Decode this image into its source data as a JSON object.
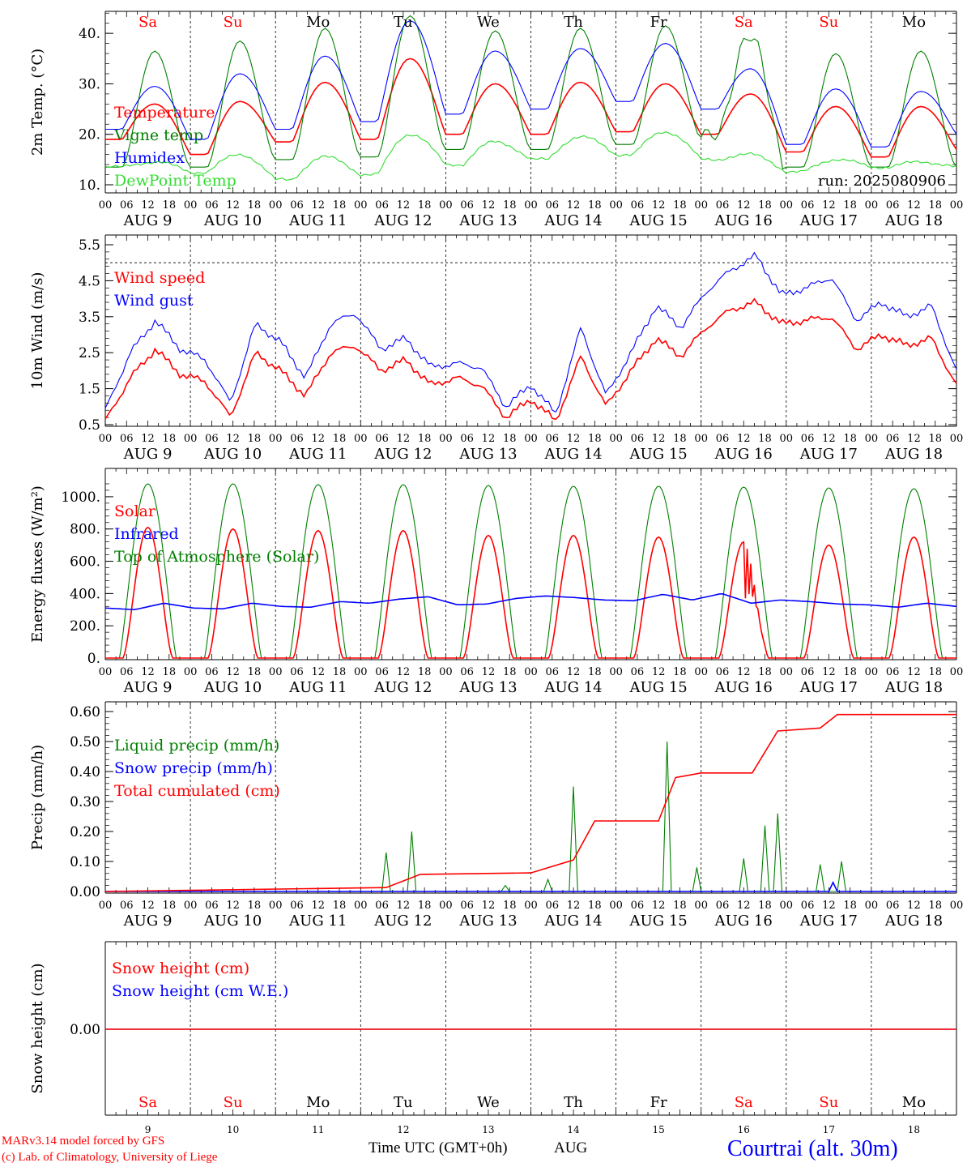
{
  "days": {
    "weekdays": [
      "Sa",
      "Su",
      "Mo",
      "Tu",
      "We",
      "Th",
      "Fr",
      "Sa",
      "Su",
      "Mo"
    ],
    "weekend_flags": [
      true,
      true,
      false,
      false,
      false,
      false,
      false,
      true,
      true,
      false
    ],
    "dates": [
      "AUG  9",
      "AUG 10",
      "AUG 11",
      "AUG 12",
      "AUG 13",
      "AUG 14",
      "AUG 15",
      "AUG 16",
      "AUG 17",
      "AUG 18"
    ],
    "day_numbers": [
      "9",
      "10",
      "11",
      "12",
      "13",
      "14",
      "15",
      "16",
      "17",
      "18"
    ],
    "hour_ticks": [
      "00",
      "06",
      "12",
      "18"
    ],
    "final_hour_label": "00"
  },
  "colors": {
    "red": "#ff0000",
    "green": "#008000",
    "blue": "#0000ff",
    "lightgreen": "#33dd33",
    "weekend": "#ff0000"
  },
  "run_label": "run: 2025080906",
  "xlabel": "Time UTC (GMT+0h)",
  "xlabel_month": "AUG",
  "footer": {
    "line1": "MARv3.14 model forced by GFS",
    "line2": "(c) Lab. of Climatology, University of Liege",
    "station": "Courtrai (alt. 30m)"
  },
  "chart_data": [
    {
      "type": "line",
      "id": "temp",
      "ylabel": "2m Temp. (°C)",
      "ylim": [
        10,
        45
      ],
      "yticks": [
        10,
        20,
        30,
        40
      ],
      "ytick_labels": [
        "10.",
        "20.",
        "30.",
        "40."
      ],
      "grid": "vertical dashed at midnight",
      "series": [
        {
          "name": "Temperature",
          "color": "red",
          "min_values": [
            19,
            16,
            18.5,
            19,
            20,
            20,
            20.5,
            20,
            16.5,
            15.5,
            17
          ],
          "max_values": [
            26,
            26.5,
            30.3,
            35,
            30,
            30.3,
            30,
            28,
            25.5,
            25.5
          ]
        },
        {
          "name": "Vigne temp",
          "color": "green",
          "min_values": [
            13.5,
            13.5,
            15,
            15.5,
            17,
            17,
            18,
            19,
            13.5,
            13.5,
            13.5
          ],
          "max_values": [
            36.5,
            38.5,
            41,
            43.5,
            40.5,
            41,
            41.5,
            39,
            36,
            36.5
          ]
        },
        {
          "name": "Humidex",
          "color": "blue",
          "min_values": [
            21,
            19,
            21,
            22.5,
            24,
            25,
            26.5,
            25,
            18,
            17.5,
            20
          ],
          "max_values": [
            29.5,
            32,
            35.5,
            42.5,
            36.5,
            37,
            38,
            33,
            29,
            28.5
          ]
        },
        {
          "name": "DewPoint Temp",
          "color": "lightgreen",
          "min_values": [
            13.5,
            12.5,
            11,
            12,
            14,
            15,
            16,
            15,
            12.5,
            13.5,
            13.5
          ],
          "max_values": [
            14.5,
            16,
            15.5,
            20,
            18.5,
            19.5,
            20.5,
            16,
            15,
            14.5
          ]
        }
      ]
    },
    {
      "type": "line",
      "id": "wind",
      "ylabel": "10m Wind (m/s)",
      "ylim": [
        0.5,
        5.5
      ],
      "yticks": [
        0.5,
        1.5,
        2.5,
        3.5,
        4.5,
        5.5
      ],
      "ytick_labels": [
        "0.5",
        "1.5",
        "2.5",
        "3.5",
        "4.5",
        "5.5"
      ],
      "threshold_line": 5.0,
      "series": [
        {
          "name": "Wind speed",
          "color": "red",
          "values": [
            0.6,
            1.8,
            2.6,
            1.9,
            1.7,
            0.7,
            2.5,
            2.0,
            1.3,
            2.5,
            2.7,
            2.0,
            2.3,
            1.6,
            1.8,
            1.6,
            0.7,
            1.2,
            0.6,
            2.4,
            1.0,
            2.0,
            2.9,
            2.4,
            3.2,
            3.7,
            3.9,
            3.3,
            3.4,
            3.5,
            2.6,
            3.0,
            2.7,
            2.9,
            1.6
          ]
        },
        {
          "name": "Wind gust",
          "color": "blue",
          "values": [
            0.9,
            2.5,
            3.4,
            2.6,
            2.3,
            1.1,
            3.3,
            2.8,
            1.8,
            3.3,
            3.6,
            2.6,
            2.9,
            2.1,
            2.2,
            2.1,
            1.0,
            1.6,
            0.8,
            3.2,
            1.3,
            2.5,
            3.8,
            3.2,
            4.2,
            4.8,
            5.2,
            4.1,
            4.3,
            4.6,
            3.4,
            3.9,
            3.5,
            3.8,
            2.0
          ]
        }
      ]
    },
    {
      "type": "line",
      "id": "energy",
      "ylabel": "Energy fluxes (W/m²)",
      "ylim": [
        0,
        1100
      ],
      "yticks": [
        0,
        200,
        400,
        600,
        800,
        1000
      ],
      "ytick_labels": [
        "0.",
        "200.",
        "400.",
        "600.",
        "800.",
        "1000."
      ],
      "series": [
        {
          "name": "Solar",
          "color": "red",
          "daily_peak": [
            810,
            800,
            790,
            790,
            760,
            760,
            750,
            720,
            700,
            750
          ]
        },
        {
          "name": "Infrared",
          "color": "blue",
          "values": [
            310,
            300,
            340,
            310,
            305,
            340,
            320,
            315,
            350,
            340,
            365,
            380,
            330,
            335,
            370,
            385,
            375,
            360,
            355,
            395,
            360,
            400,
            340,
            360,
            350,
            335,
            330,
            315,
            340,
            320
          ]
        },
        {
          "name": "Top of Atmosphere (Solar)",
          "color": "green",
          "daily_peak": [
            1080,
            1080,
            1075,
            1075,
            1070,
            1065,
            1065,
            1060,
            1055,
            1050
          ]
        }
      ]
    },
    {
      "type": "line",
      "id": "precip",
      "ylabel": "Precip (mm/h)",
      "ylim": [
        0,
        0.6
      ],
      "yticks": [
        0,
        0.1,
        0.2,
        0.3,
        0.4,
        0.5,
        0.6
      ],
      "ytick_labels": [
        "0.00",
        "0.10",
        "0.20",
        "0.30",
        "0.40",
        "0.50",
        "0.60"
      ],
      "series": [
        {
          "name": "Liquid precip (mm/h)",
          "color": "green",
          "spikes": [
            [
              3.3,
              0.13
            ],
            [
              3.6,
              0.2
            ],
            [
              4.7,
              0.02
            ],
            [
              5.2,
              0.04
            ],
            [
              5.5,
              0.35
            ],
            [
              6.6,
              0.5
            ],
            [
              6.95,
              0.08
            ],
            [
              7.5,
              0.11
            ],
            [
              7.75,
              0.22
            ],
            [
              7.9,
              0.26
            ],
            [
              8.4,
              0.09
            ],
            [
              8.65,
              0.1
            ]
          ]
        },
        {
          "name": "Snow precip (mm/h)",
          "color": "blue",
          "spikes": [
            [
              8.55,
              0.03
            ]
          ]
        },
        {
          "name": "Total cumulated (cm)",
          "color": "red",
          "steps": [
            [
              0,
              0
            ],
            [
              3.3,
              0.013
            ],
            [
              3.7,
              0.057
            ],
            [
              5.0,
              0.062
            ],
            [
              5.5,
              0.105
            ],
            [
              5.75,
              0.235
            ],
            [
              6.5,
              0.235
            ],
            [
              6.7,
              0.38
            ],
            [
              7.0,
              0.395
            ],
            [
              7.6,
              0.395
            ],
            [
              7.9,
              0.535
            ],
            [
              8.4,
              0.545
            ],
            [
              8.6,
              0.59
            ],
            [
              10,
              0.59
            ]
          ]
        }
      ]
    },
    {
      "type": "line",
      "id": "snow",
      "ylabel": "Snow height (cm)",
      "ylim": [
        -1,
        1
      ],
      "yticks": [
        0
      ],
      "ytick_labels": [
        "0.00"
      ],
      "series": [
        {
          "name": "Snow height (cm)",
          "color": "red",
          "values": [
            0,
            0
          ]
        },
        {
          "name": "Snow height (cm W.E.)",
          "color": "blue",
          "values": [
            0,
            0
          ]
        }
      ]
    }
  ]
}
